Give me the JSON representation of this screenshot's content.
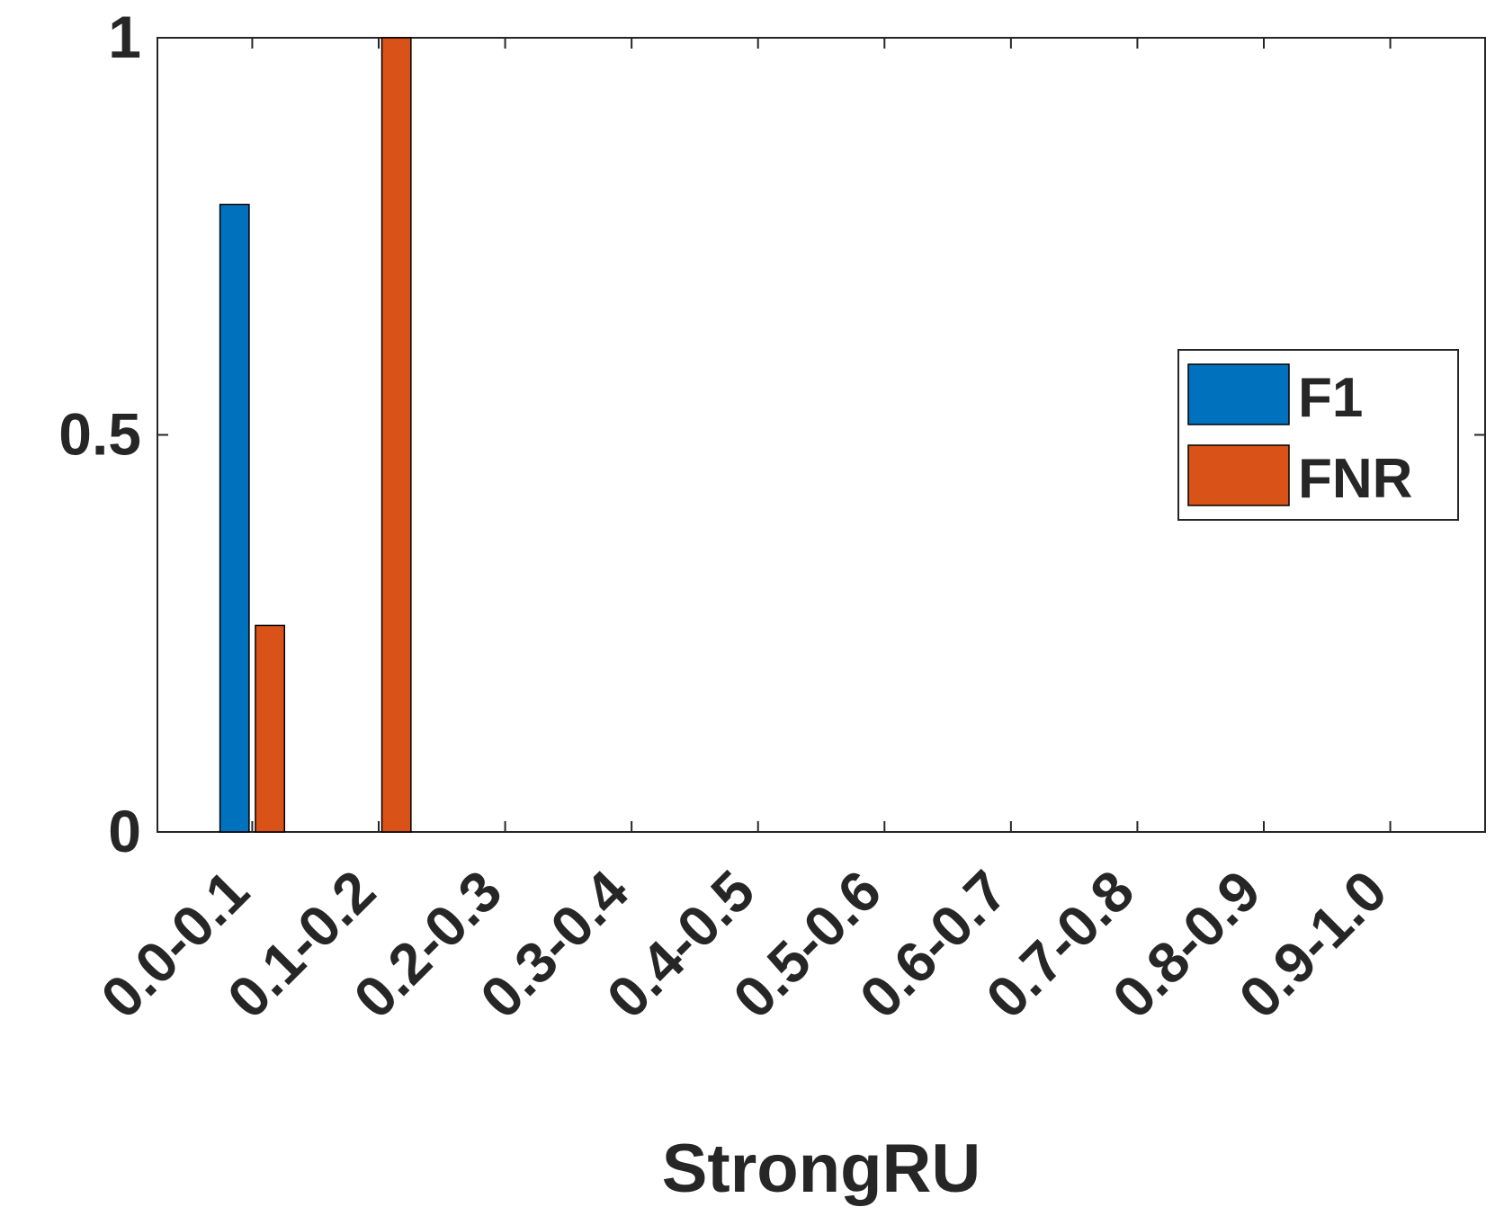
{
  "chart_data": {
    "type": "bar",
    "x_label": "StrongRU",
    "categories": [
      "0.0-0.1",
      "0.1-0.2",
      "0.2-0.3",
      "0.3-0.4",
      "0.4-0.5",
      "0.5-0.6",
      "0.6-0.7",
      "0.7-0.8",
      "0.8-0.9",
      "0.9-1.0"
    ],
    "series": [
      {
        "name": "F1",
        "color": "#0072bd",
        "values": [
          0.79,
          0,
          0,
          0,
          0,
          0,
          0,
          0,
          0,
          0
        ]
      },
      {
        "name": "FNR",
        "color": "#d95319",
        "values": [
          0.26,
          1,
          0,
          0,
          0,
          0,
          0,
          0,
          0,
          0
        ]
      }
    ],
    "ylim": [
      0,
      1
    ],
    "yticks": [
      0,
      0.5,
      1
    ],
    "legend": "right"
  }
}
